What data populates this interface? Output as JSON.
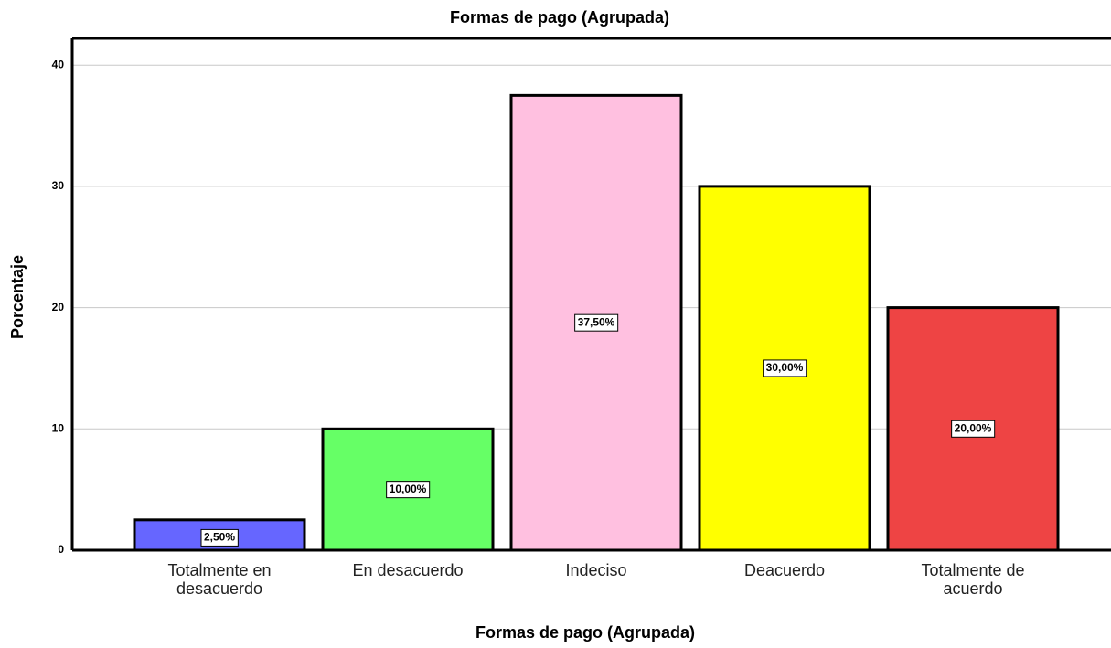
{
  "chart_data": {
    "type": "bar",
    "title": "Formas de pago  (Agrupada)",
    "xlabel": "Formas de pago  (Agrupada)",
    "ylabel": "Porcentaje",
    "categories": [
      "Totalmente en desacuerdo",
      "En desacuerdo",
      "Indeciso",
      "Deacuerdo",
      "Totalmente de acuerdo"
    ],
    "values": [
      2.5,
      10,
      37.5,
      30,
      20
    ],
    "value_labels": [
      "2,50%",
      "10,00%",
      "37,50%",
      "30,00%",
      "20,00%"
    ],
    "colors": [
      "#6666ff",
      "#66ff66",
      "#ffc0e0",
      "#ffff00",
      "#ee4444"
    ],
    "ylim": [
      0,
      42.2
    ],
    "yticks": [
      0,
      10,
      20,
      30,
      40
    ],
    "grid": true
  }
}
